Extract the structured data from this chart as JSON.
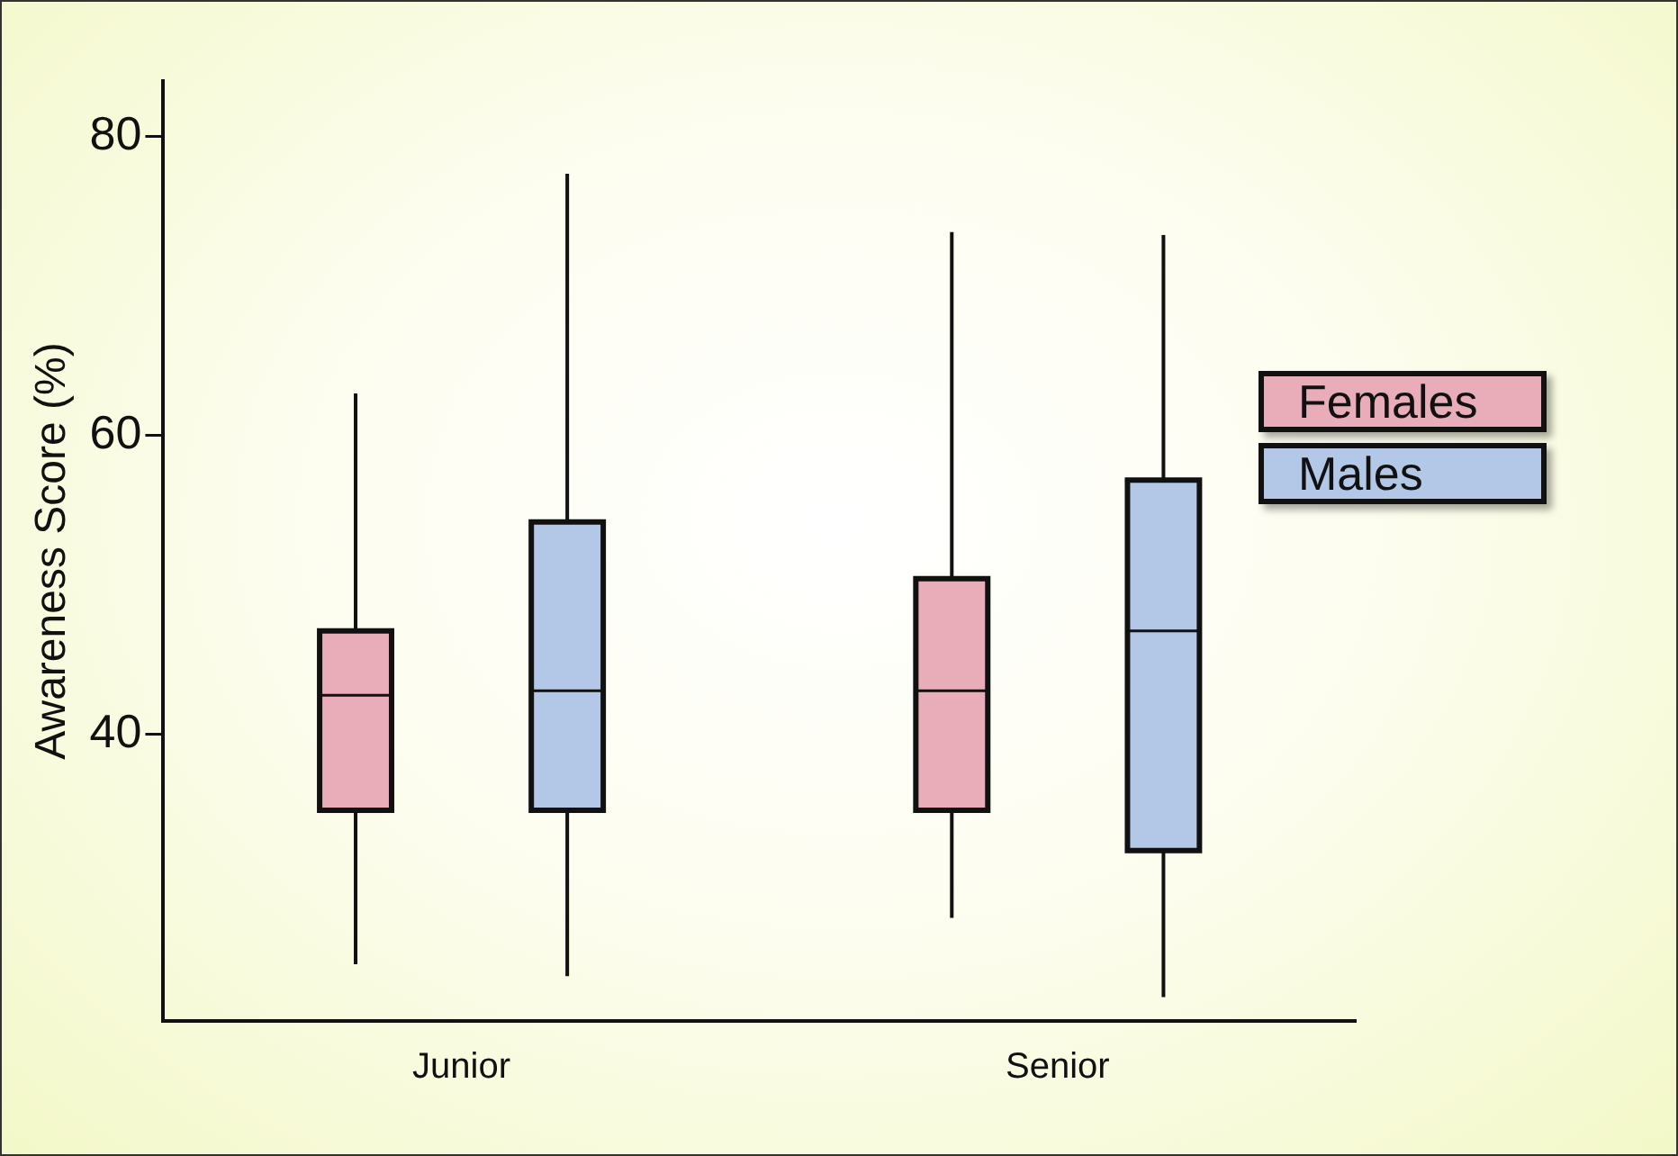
{
  "chart_data": {
    "type": "box",
    "ylabel": "Awareness Score (%)",
    "categories": [
      "Junior",
      "Senior"
    ],
    "series": [
      {
        "name": "Females",
        "color": "#e8adb8",
        "boxes": [
          {
            "low": 24.6,
            "q1": 34.9,
            "median": 42.6,
            "q3": 46.9,
            "high": 62.8
          },
          {
            "low": 27.7,
            "q1": 34.9,
            "median": 42.9,
            "q3": 50.4,
            "high": 73.6
          }
        ]
      },
      {
        "name": "Males",
        "color": "#b3c7e6",
        "boxes": [
          {
            "low": 23.8,
            "q1": 34.9,
            "median": 42.9,
            "q3": 54.2,
            "high": 77.5
          },
          {
            "low": 22.4,
            "q1": 32.2,
            "median": 46.9,
            "q3": 57.0,
            "high": 73.4
          }
        ]
      }
    ],
    "ylim": [
      20.8,
      83.7
    ],
    "yticks": [
      40,
      60,
      80
    ],
    "grid": false,
    "legend": "right"
  }
}
